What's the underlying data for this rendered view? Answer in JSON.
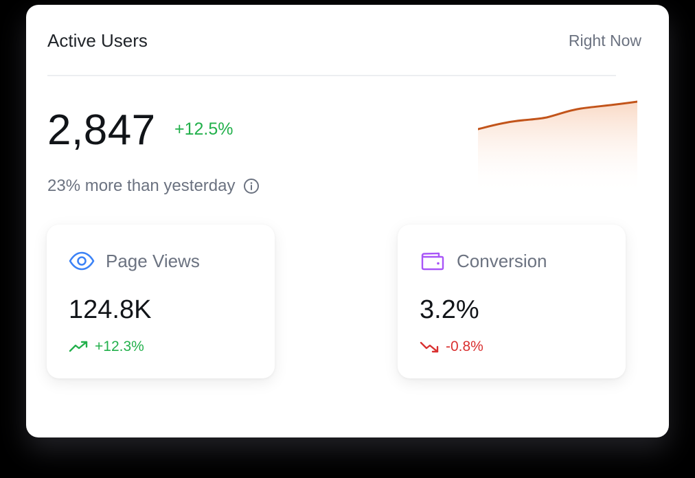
{
  "card": {
    "title": "Active Users",
    "period": "Right Now",
    "main_value": "2,847",
    "main_change": "+12.5%",
    "subtext": "23% more than yesterday",
    "info_icon": "info-circle-icon",
    "accent_color": "#c2541a",
    "positive_color": "#22b04b",
    "negative_color": "#d93030"
  },
  "metrics": [
    {
      "label": "Page Views",
      "value": "124.8K",
      "change": "+12.3%",
      "icon": "eye-icon",
      "icon_color": "#3b82f6",
      "trend": "up"
    },
    {
      "label": "Conversion",
      "value": "3.2%",
      "change": "-0.8%",
      "icon": "wallet-icon",
      "icon_color": "#a855f7",
      "trend": "down"
    }
  ]
}
